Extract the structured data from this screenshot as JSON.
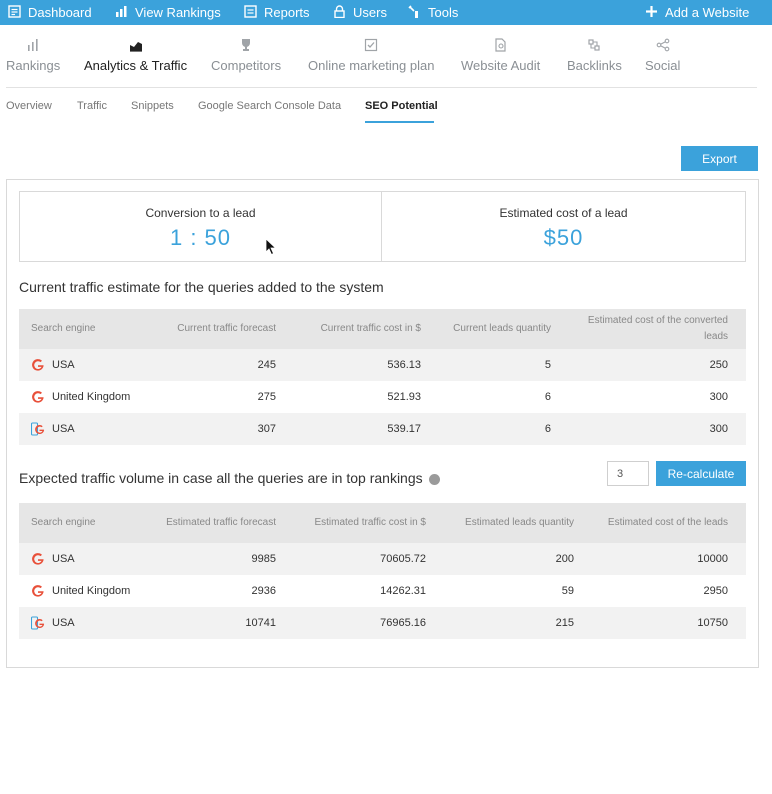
{
  "topbar": {
    "dashboard": "Dashboard",
    "view_rankings": "View Rankings",
    "reports": "Reports",
    "users": "Users",
    "tools": "Tools",
    "add_website": "Add a Website"
  },
  "main_tabs": [
    {
      "label": "Rankings",
      "icon": "bar-chart-icon"
    },
    {
      "label": "Analytics & Traffic",
      "icon": "area-chart-icon"
    },
    {
      "label": "Competitors",
      "icon": "trophy-icon"
    },
    {
      "label": "Online marketing plan",
      "icon": "checkbox-icon"
    },
    {
      "label": "Website Audit",
      "icon": "document-search-icon"
    },
    {
      "label": "Backlinks",
      "icon": "link-arrows-icon"
    },
    {
      "label": "Social",
      "icon": "share-icon"
    }
  ],
  "sub_tabs": [
    "Overview",
    "Traffic",
    "Snippets",
    "Google Search Console Data",
    "SEO Potential"
  ],
  "export_label": "Export",
  "metrics": {
    "conversion_label": "Conversion to a lead",
    "conversion_value": "1 : 50",
    "cost_label": "Estimated cost of a lead",
    "cost_value": "$50"
  },
  "current_section": {
    "title": "Current traffic estimate for the queries added to the system",
    "headers": [
      "Search engine",
      "Current traffic forecast",
      "Current traffic cost in $",
      "Current leads quantity",
      "Estimated cost of the converted leads"
    ],
    "rows": [
      {
        "engine": "USA",
        "icon": "google-icon",
        "c1": "245",
        "c2": "536.13",
        "c3": "5",
        "c4": "250"
      },
      {
        "engine": "United Kingdom",
        "icon": "google-icon",
        "c1": "275",
        "c2": "521.93",
        "c3": "6",
        "c4": "300"
      },
      {
        "engine": "USA",
        "icon": "google-mobile-icon",
        "c1": "307",
        "c2": "539.17",
        "c3": "6",
        "c4": "300"
      }
    ]
  },
  "expected_section": {
    "title": "Expected traffic volume in case all the queries are in top rankings",
    "input_value": "3",
    "recalc_label": "Re-calculate",
    "headers": [
      "Search engine",
      "Estimated traffic forecast",
      "Estimated traffic cost in $",
      "Estimated leads quantity",
      "Estimated cost of the leads"
    ],
    "rows": [
      {
        "engine": "USA",
        "icon": "google-icon",
        "c1": "9985",
        "c2": "70605.72",
        "c3": "200",
        "c4": "10000"
      },
      {
        "engine": "United Kingdom",
        "icon": "google-icon",
        "c1": "2936",
        "c2": "14262.31",
        "c3": "59",
        "c4": "2950"
      },
      {
        "engine": "USA",
        "icon": "google-mobile-icon",
        "c1": "10741",
        "c2": "76965.16",
        "c3": "215",
        "c4": "10750"
      }
    ]
  },
  "colors": {
    "accent": "#3ba2db",
    "header_bg": "#e6e6e6"
  }
}
